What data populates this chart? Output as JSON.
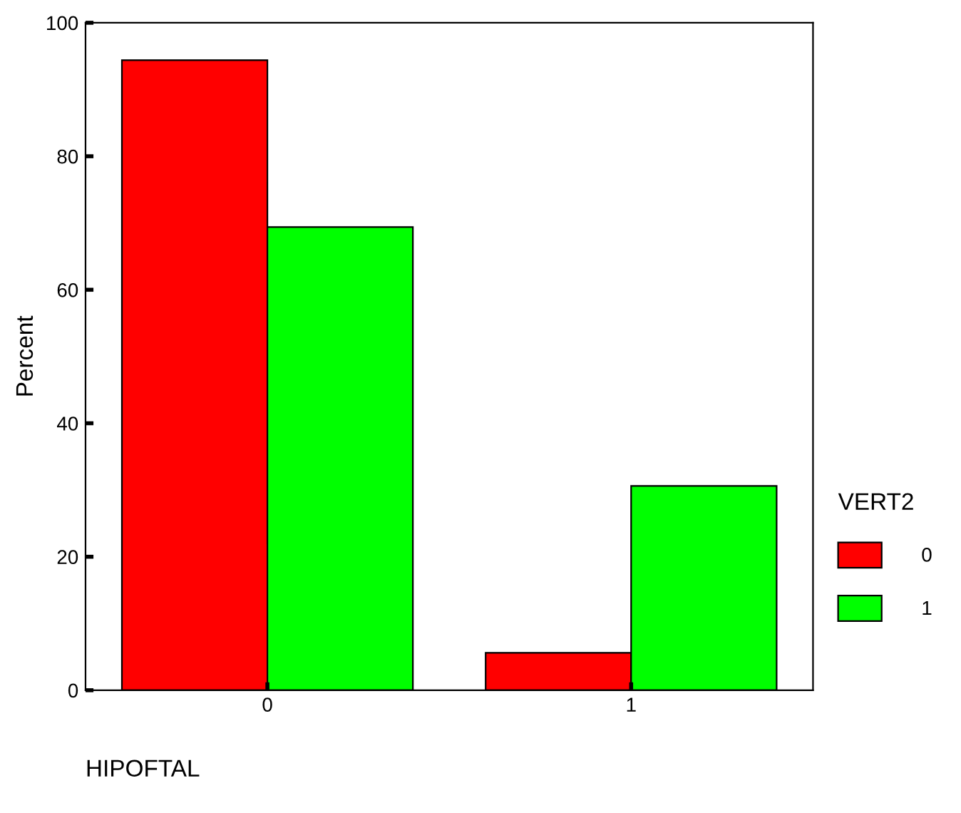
{
  "chart_data": {
    "type": "bar",
    "xlabel": "HIPOFTAL",
    "ylabel": "Percent",
    "legend_title": "VERT2",
    "categories": [
      "0",
      "1"
    ],
    "series": [
      {
        "name": "0",
        "color": "#ff0000",
        "values": [
          94.4,
          5.6
        ]
      },
      {
        "name": "1",
        "color": "#00ff00",
        "values": [
          69.4,
          30.6
        ]
      }
    ],
    "ylim": [
      0,
      100
    ],
    "yticks": [
      0,
      20,
      40,
      60,
      80,
      100
    ],
    "grid": false,
    "legend": "right"
  }
}
